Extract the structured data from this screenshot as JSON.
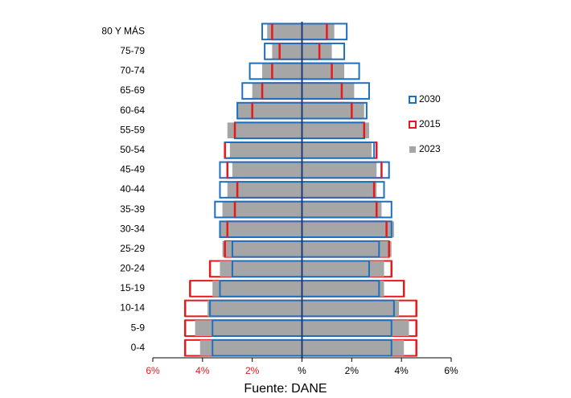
{
  "chart_data": {
    "type": "population-pyramid",
    "categories": [
      "80 Y MÁS",
      "75-79",
      "70-74",
      "65-69",
      "60-64",
      "55-59",
      "50-54",
      "45-49",
      "40-44",
      "35-39",
      "30-34",
      "25-29",
      "20-24",
      "15-19",
      "10-14",
      "5-9",
      "0-4"
    ],
    "series": [
      {
        "name": "2030",
        "color": "#1f6fbf",
        "style": "outline",
        "left": [
          1.6,
          1.5,
          2.1,
          2.4,
          2.6,
          2.7,
          3.1,
          3.3,
          3.3,
          3.5,
          3.3,
          2.8,
          2.8,
          3.3,
          3.7,
          3.6,
          3.6
        ],
        "right": [
          1.8,
          1.7,
          2.3,
          2.7,
          2.6,
          2.5,
          2.9,
          3.5,
          3.3,
          3.6,
          3.6,
          3.1,
          2.7,
          3.1,
          3.7,
          3.6,
          3.6
        ]
      },
      {
        "name": "2015",
        "color": "#e8191c",
        "style": "outline-behind",
        "left": [
          1.2,
          0.9,
          1.2,
          1.6,
          2.0,
          2.7,
          3.1,
          3.0,
          2.6,
          2.7,
          3.0,
          3.1,
          3.7,
          4.5,
          4.7,
          4.7,
          4.7
        ],
        "right": [
          1.0,
          0.7,
          1.2,
          1.6,
          2.0,
          2.5,
          3.0,
          3.2,
          2.9,
          3.0,
          3.4,
          3.5,
          3.6,
          4.1,
          4.6,
          4.6,
          4.6
        ]
      },
      {
        "name": "2023",
        "color": "#a6a6a6",
        "style": "fill",
        "left": [
          1.4,
          1.2,
          1.6,
          2.0,
          2.6,
          3.0,
          2.9,
          2.8,
          3.0,
          3.2,
          3.3,
          3.2,
          3.3,
          3.6,
          3.8,
          4.3,
          4.1
        ],
        "right": [
          1.3,
          1.2,
          1.7,
          2.1,
          2.5,
          2.7,
          2.8,
          3.0,
          3.0,
          3.2,
          3.7,
          3.6,
          3.3,
          3.3,
          3.9,
          4.3,
          4.1
        ]
      }
    ],
    "xlim": [
      -6,
      6
    ],
    "xticks": [
      {
        "value": -6,
        "label": "6%"
      },
      {
        "value": -4,
        "label": "4%"
      },
      {
        "value": -2,
        "label": "2%"
      },
      {
        "value": 0,
        "label": "%"
      },
      {
        "value": 2,
        "label": "2%"
      },
      {
        "value": 4,
        "label": "4%"
      },
      {
        "value": 6,
        "label": "6%"
      }
    ],
    "negative_tick_color": "#e8191c",
    "axis_color": "#1f3c78",
    "source": "Fuente: DANE"
  }
}
